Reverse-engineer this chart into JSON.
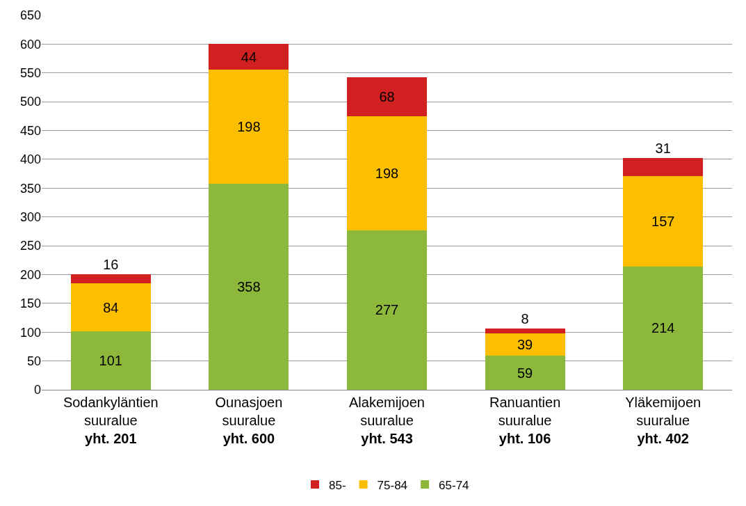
{
  "chart_data": {
    "type": "bar",
    "stacked": true,
    "categories": [
      "Sodankyläntien\nsuuralue",
      "Ounasjoen\nsuuralue",
      "Alakemijoen\nsuuralue",
      "Ranuantien\nsuuralue",
      "Yläkemijoen\nsuuralue"
    ],
    "totals": [
      "yht. 201",
      "yht. 600",
      "yht. 543",
      "yht. 106",
      "yht. 402"
    ],
    "series": [
      {
        "name": "65-74",
        "color": "#8cb83c",
        "values": [
          101,
          358,
          277,
          59,
          214
        ]
      },
      {
        "name": "75-84",
        "color": "#fcbf00",
        "values": [
          84,
          198,
          198,
          39,
          157
        ]
      },
      {
        "name": "85-",
        "color": "#d02020",
        "values": [
          16,
          44,
          68,
          8,
          31
        ]
      }
    ],
    "ylim": [
      0,
      650
    ],
    "yticks": [
      0,
      50,
      100,
      150,
      200,
      250,
      300,
      350,
      400,
      450,
      500,
      550,
      600,
      650
    ],
    "grid": "y",
    "legend": "bottom",
    "data_labels": true
  }
}
